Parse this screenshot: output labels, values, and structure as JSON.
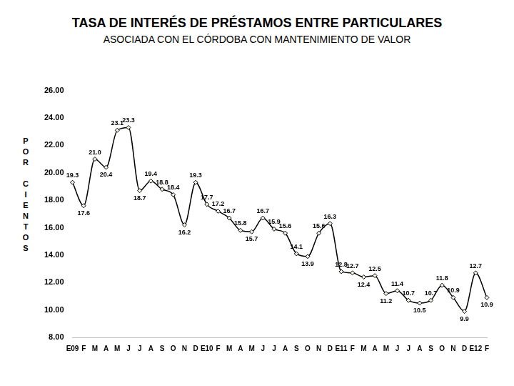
{
  "chart_data": {
    "type": "line",
    "title": "TASA DE INTERÉS DE PRÉSTAMOS ENTRE PARTICULARES",
    "subtitle": "ASOCIADA CON EL CÓRDOBA CON MANTENIMIENTO DE VALOR",
    "y_label": "POR CIENTOS",
    "categories": [
      "E09",
      "F",
      "M",
      "A",
      "M",
      "J",
      "J",
      "A",
      "S",
      "O",
      "N",
      "D",
      "E10",
      "F",
      "M",
      "A",
      "M",
      "J",
      "J",
      "A",
      "S",
      "O",
      "N",
      "D",
      "E11",
      "F",
      "M",
      "A",
      "M",
      "J",
      "J",
      "A",
      "S",
      "O",
      "N",
      "D",
      "E12",
      "F"
    ],
    "values": [
      19.3,
      17.6,
      21.0,
      20.4,
      23.1,
      23.3,
      18.7,
      19.4,
      18.8,
      18.4,
      16.2,
      19.3,
      17.7,
      17.2,
      16.7,
      15.8,
      15.7,
      16.7,
      15.9,
      15.6,
      14.1,
      13.9,
      15.6,
      16.3,
      12.8,
      12.7,
      12.4,
      12.5,
      11.2,
      11.4,
      10.7,
      10.5,
      10.7,
      11.8,
      10.9,
      9.9,
      12.7,
      10.9
    ],
    "value_labels": [
      "19.3",
      "17.6",
      "21.0",
      "20.4",
      "23.1",
      "23.3",
      "18.7",
      "19.4",
      "18.8",
      "18.4",
      "16.2",
      "19.3",
      "17.7",
      "17.2",
      "16.7",
      "15.8",
      "15.7",
      "16.7",
      "15.9",
      "15.6",
      "14.1",
      "13.9",
      "15.6",
      "16.3",
      "12.8",
      "12.7",
      "12.4",
      "12.5",
      "11.2",
      "11.4",
      "10.7",
      "10.5",
      "10.7",
      "11.8",
      "10.9",
      "9.9",
      "12.7",
      "10.9"
    ],
    "color": "#000000",
    "marker": "diamond",
    "ylim": [
      8,
      26
    ],
    "yticks": [
      {
        "value": 8,
        "label": "8.00"
      },
      {
        "value": 10,
        "label": "10.00"
      },
      {
        "value": 12,
        "label": "12.00"
      },
      {
        "value": 14,
        "label": "14.00"
      },
      {
        "value": 16,
        "label": "16.00"
      },
      {
        "value": 18,
        "label": "18.00"
      },
      {
        "value": 20,
        "label": "20.00"
      },
      {
        "value": 22,
        "label": "22.00"
      },
      {
        "value": 24,
        "label": "24.00"
      },
      {
        "value": 26,
        "label": "26.00"
      }
    ],
    "grid": false,
    "data_labels": true
  }
}
